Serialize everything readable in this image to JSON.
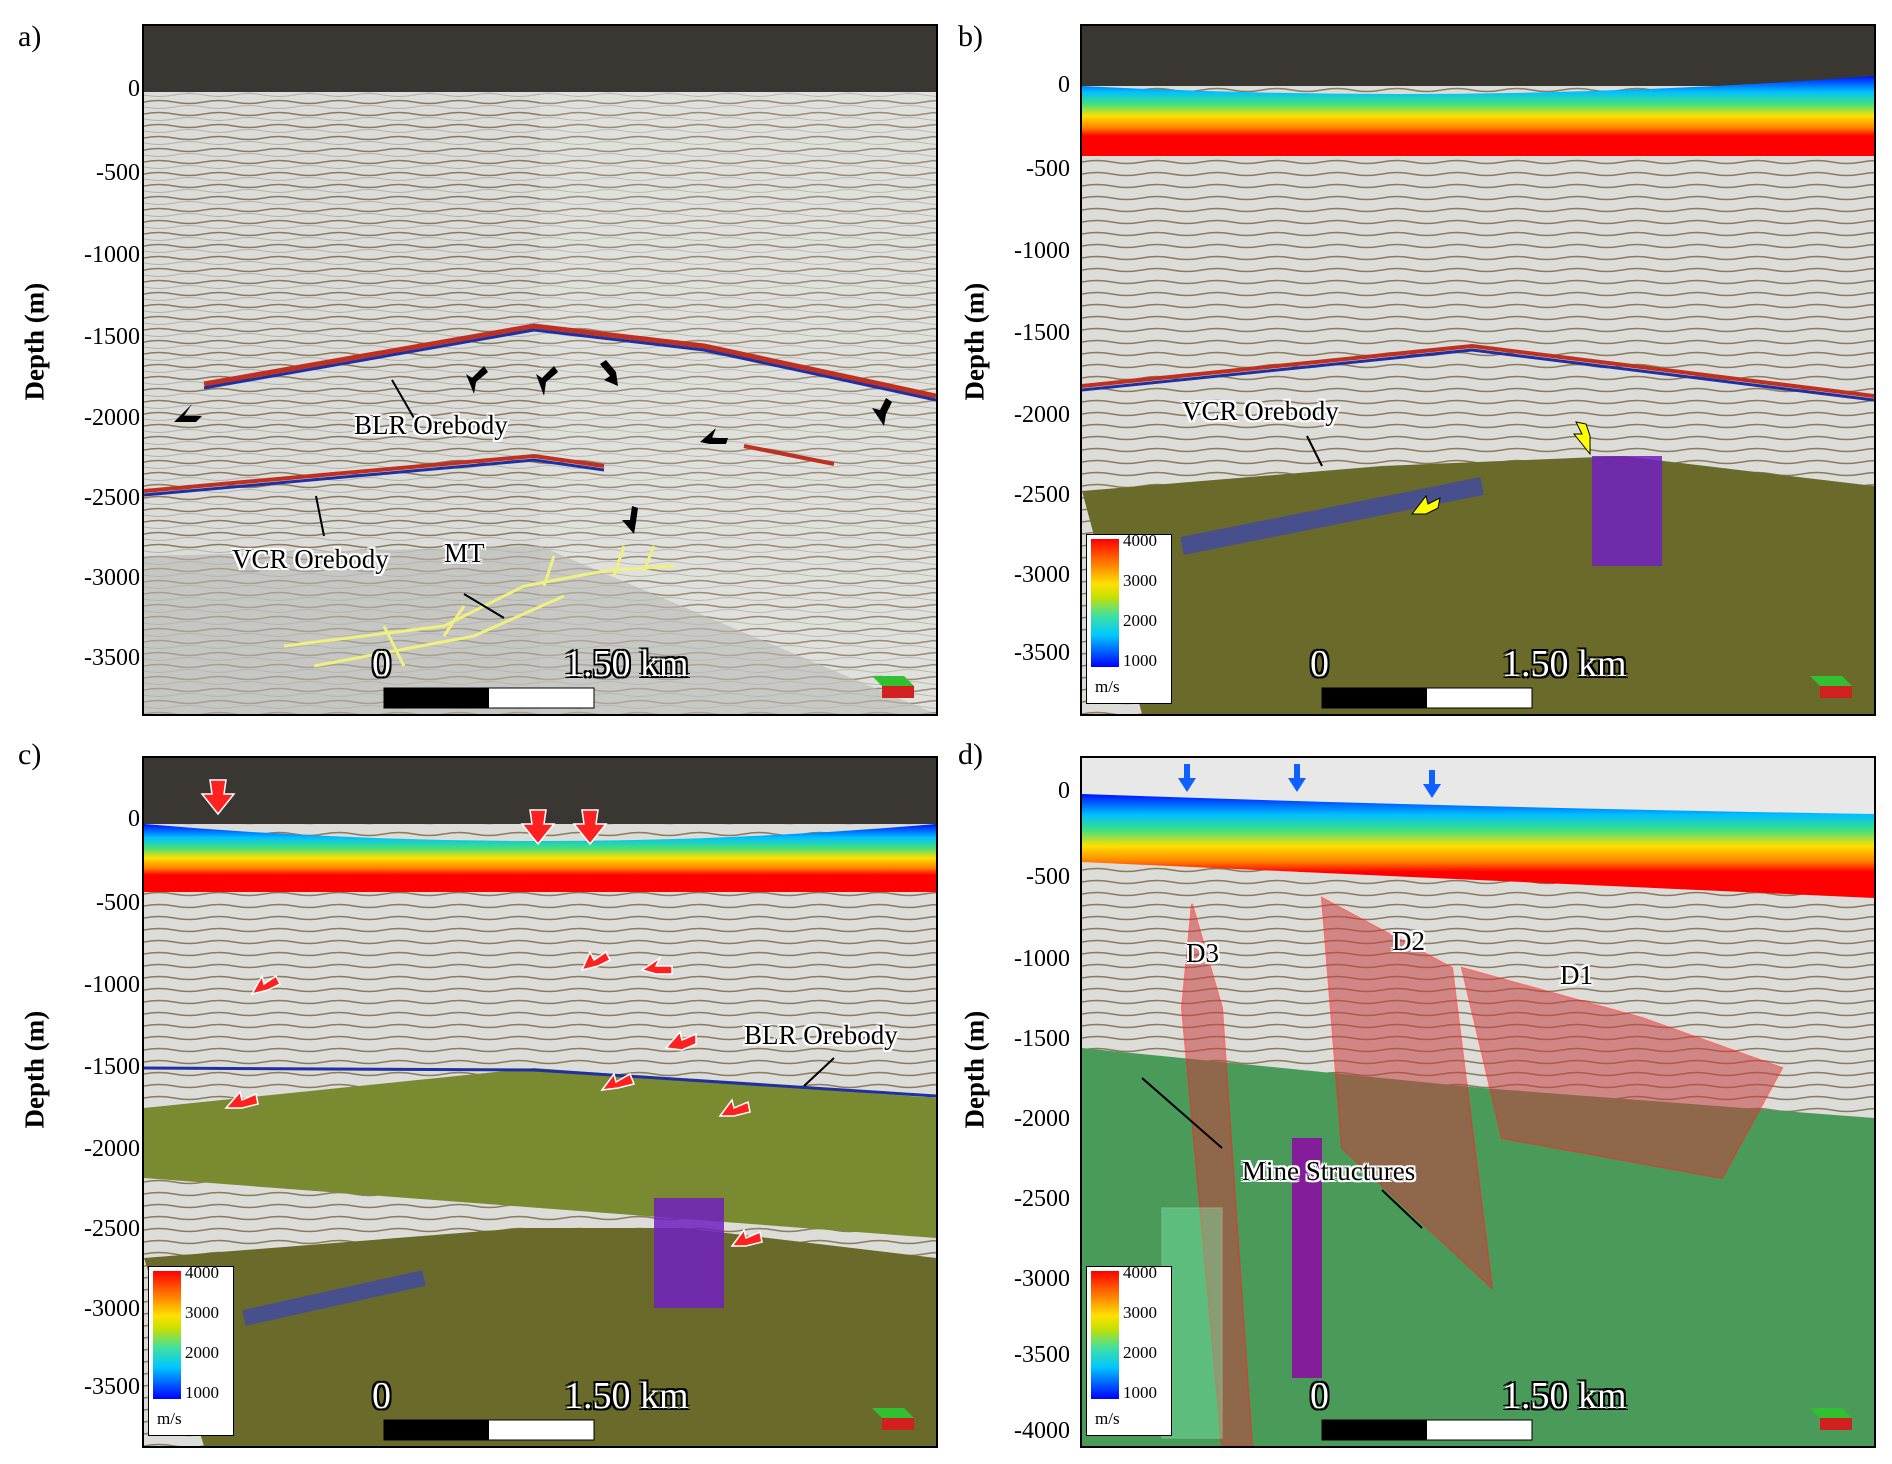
{
  "panels": [
    {
      "label": "a)",
      "ylabel": "Depth (m)",
      "ticks": [
        "0",
        "-500",
        "-1000",
        "-1500",
        "-2000",
        "-2500",
        "-3000",
        "-3500"
      ],
      "annotations": [
        "BLR Orebody",
        "VCR Orebody",
        "MT"
      ],
      "scale": {
        "start": "0",
        "end": "1.50 km"
      }
    },
    {
      "label": "b)",
      "ylabel": "Depth (m)",
      "ticks": [
        "0",
        "-500",
        "-1000",
        "-1500",
        "-2000",
        "-2500",
        "-3000",
        "-3500"
      ],
      "annotations": [
        "VCR Orebody"
      ],
      "scale": {
        "start": "0",
        "end": "1.50 km"
      },
      "colorbar": {
        "ticks": [
          "4000",
          "3000",
          "2000",
          "1000"
        ],
        "unit": "m/s"
      }
    },
    {
      "label": "c)",
      "ylabel": "Depth (m)",
      "ticks": [
        "0",
        "-500",
        "-1000",
        "-1500",
        "-2000",
        "-2500",
        "-3000",
        "-3500"
      ],
      "annotations": [
        "BLR Orebody"
      ],
      "scale": {
        "start": "0",
        "end": "1.50 km"
      },
      "colorbar": {
        "ticks": [
          "4000",
          "3000",
          "2000",
          "1000"
        ],
        "unit": "m/s"
      }
    },
    {
      "label": "d)",
      "ylabel": "Depth (m)",
      "ticks": [
        "0",
        "-500",
        "-1000",
        "-1500",
        "-2000",
        "-2500",
        "-3000",
        "-3500",
        "-4000"
      ],
      "annotations": [
        "D3",
        "D2",
        "D1",
        "Mine Structures"
      ],
      "scale": {
        "start": "0",
        "end": "1.50 km"
      },
      "colorbar": {
        "ticks": [
          "4000",
          "3000",
          "2000",
          "1000"
        ],
        "unit": "m/s"
      }
    }
  ],
  "colors": {
    "velocity_low": "#0000ff",
    "velocity_high": "#ff0000",
    "fault_plane": "#c84040",
    "arrow_red": "#ff2020",
    "arrow_yellow": "#ffff00",
    "arrow_blue": "#1060ff",
    "mine_tunnels": "#f0f080"
  }
}
